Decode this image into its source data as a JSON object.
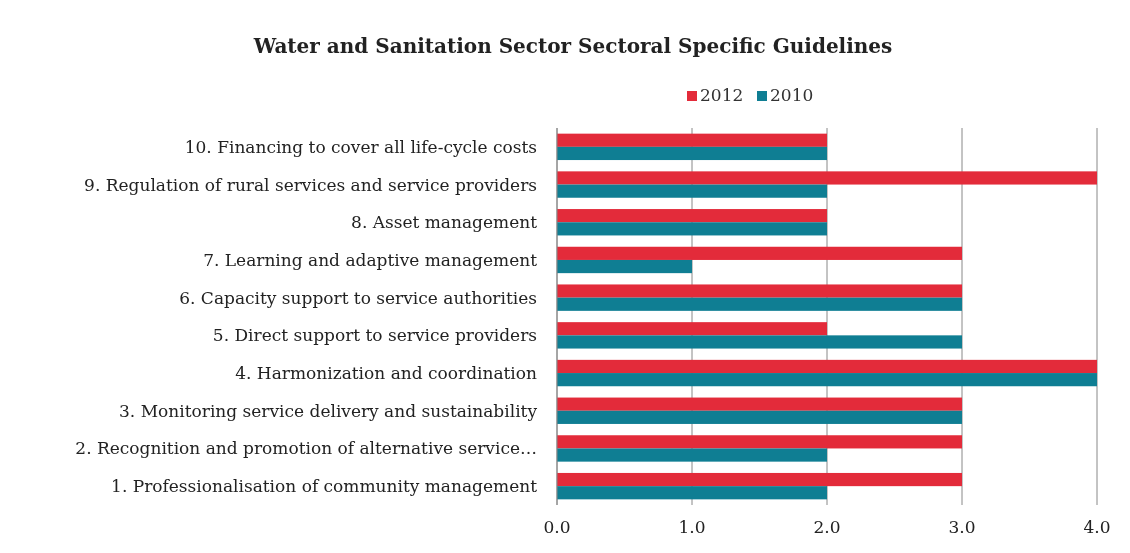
{
  "chart_data": {
    "type": "bar",
    "orientation": "horizontal",
    "title": "Water and Sanitation Sector Sectoral Specific Guidelines",
    "categories": [
      "10. Financing to cover all life-cycle costs",
      "9. Regulation of rural services and service providers",
      "8. Asset management",
      "7. Learning and adaptive management",
      "6. Capacity support to service authorities",
      "5. Direct support to service providers",
      "4. Harmonization and coordination",
      "3. Monitoring service delivery and sustainability",
      "2. Recognition and promotion of alternative service…",
      "1. Professionalisation of community management"
    ],
    "series": [
      {
        "name": "2012",
        "color": "#e32b3a",
        "values": [
          2,
          4,
          2,
          3,
          3,
          2,
          4,
          3,
          3,
          3
        ]
      },
      {
        "name": "2010",
        "color": "#0f7e93",
        "values": [
          2,
          2,
          2,
          1,
          3,
          3,
          4,
          3,
          2,
          2
        ]
      }
    ],
    "xlim": [
      0,
      4
    ],
    "xticks": [
      {
        "value": 0,
        "label": "0.0"
      },
      {
        "value": 1,
        "label": "1.0"
      },
      {
        "value": 2,
        "label": "2.0"
      },
      {
        "value": 3,
        "label": "3.0"
      },
      {
        "value": 4,
        "label": "4.0"
      }
    ],
    "grid": "x",
    "legend": "top"
  }
}
